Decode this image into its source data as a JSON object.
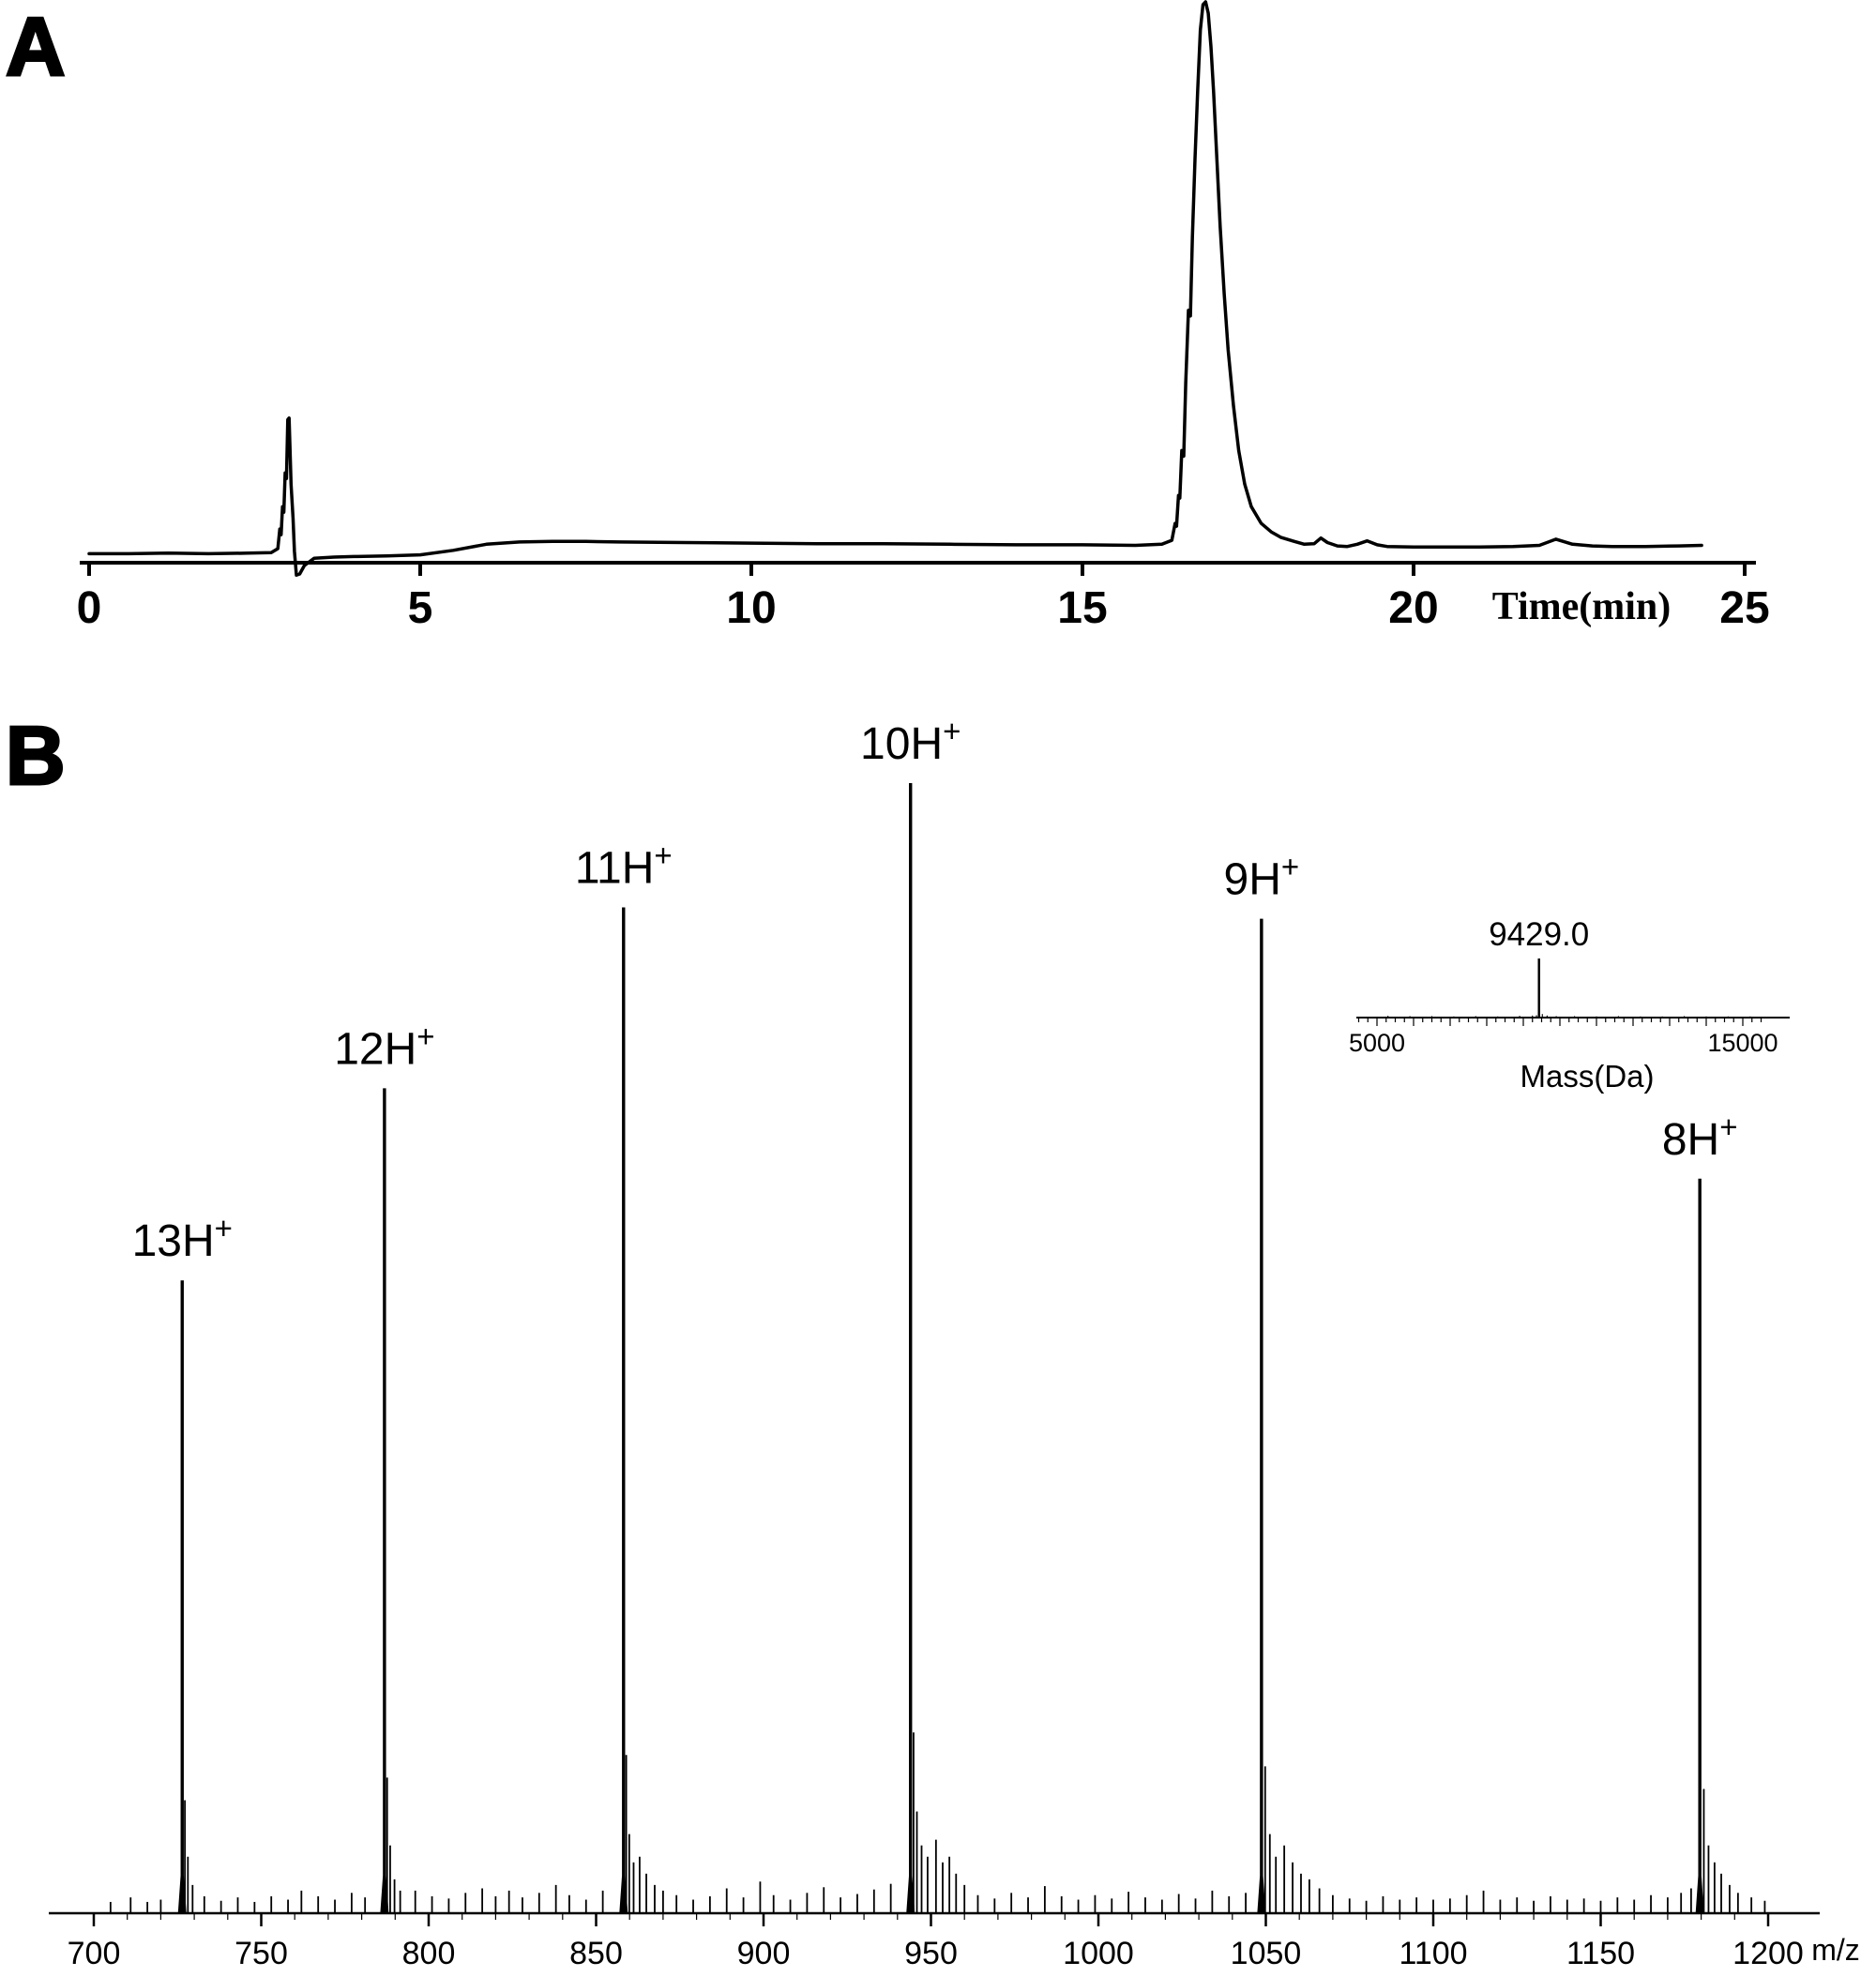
{
  "panels": {
    "a": {
      "letter": "A"
    },
    "b": {
      "letter": "B"
    }
  },
  "colors": {
    "background": "#ffffff",
    "trace": "#000000"
  },
  "chart_data": [
    {
      "id": "hplc-chromatogram",
      "type": "line",
      "panel": "A",
      "title": "",
      "xlabel": "Time(min)",
      "ylabel": "",
      "xlim": [
        0,
        25
      ],
      "x_ticks": [
        0,
        5,
        10,
        15,
        20,
        25
      ],
      "solvent_front_time_min": 3.0,
      "main_peak_time_min": 16.9,
      "points": [
        [
          0,
          1.6
        ],
        [
          0.6,
          1.6
        ],
        [
          1.2,
          1.7
        ],
        [
          1.8,
          1.6
        ],
        [
          2.4,
          1.7
        ],
        [
          2.75,
          1.8
        ],
        [
          2.85,
          2.5
        ],
        [
          2.88,
          6
        ],
        [
          2.9,
          5
        ],
        [
          2.92,
          10
        ],
        [
          2.94,
          9
        ],
        [
          2.96,
          16
        ],
        [
          2.98,
          15
        ],
        [
          3.0,
          25.5
        ],
        [
          3.02,
          25.8
        ],
        [
          3.05,
          14
        ],
        [
          3.08,
          8
        ],
        [
          3.1,
          2
        ],
        [
          3.13,
          -2.2
        ],
        [
          3.18,
          -2.0
        ],
        [
          3.25,
          -0.5
        ],
        [
          3.4,
          0.8
        ],
        [
          3.7,
          1.0
        ],
        [
          4.0,
          1.1
        ],
        [
          4.5,
          1.2
        ],
        [
          5.0,
          1.4
        ],
        [
          5.5,
          2.2
        ],
        [
          6.0,
          3.3
        ],
        [
          6.5,
          3.7
        ],
        [
          7.0,
          3.8
        ],
        [
          7.5,
          3.8
        ],
        [
          8.0,
          3.7
        ],
        [
          9.0,
          3.6
        ],
        [
          10.0,
          3.5
        ],
        [
          11.0,
          3.4
        ],
        [
          12.0,
          3.4
        ],
        [
          13.0,
          3.3
        ],
        [
          14.0,
          3.2
        ],
        [
          15.0,
          3.2
        ],
        [
          15.8,
          3.1
        ],
        [
          16.2,
          3.3
        ],
        [
          16.35,
          4.0
        ],
        [
          16.4,
          7.0
        ],
        [
          16.42,
          6.5
        ],
        [
          16.45,
          12
        ],
        [
          16.47,
          11.5
        ],
        [
          16.5,
          20
        ],
        [
          16.53,
          19
        ],
        [
          16.56,
          32
        ],
        [
          16.6,
          45
        ],
        [
          16.63,
          44
        ],
        [
          16.66,
          58
        ],
        [
          16.7,
          72
        ],
        [
          16.74,
          84
        ],
        [
          16.78,
          95
        ],
        [
          16.82,
          99.5
        ],
        [
          16.86,
          100
        ],
        [
          16.9,
          98
        ],
        [
          16.94,
          92
        ],
        [
          16.98,
          84
        ],
        [
          17.03,
          72
        ],
        [
          17.08,
          60
        ],
        [
          17.14,
          48
        ],
        [
          17.2,
          38
        ],
        [
          17.28,
          28
        ],
        [
          17.36,
          20
        ],
        [
          17.45,
          14
        ],
        [
          17.55,
          10
        ],
        [
          17.7,
          7
        ],
        [
          17.85,
          5.5
        ],
        [
          18.0,
          4.5
        ],
        [
          18.2,
          3.8
        ],
        [
          18.35,
          3.3
        ],
        [
          18.5,
          3.4
        ],
        [
          18.6,
          4.4
        ],
        [
          18.7,
          3.6
        ],
        [
          18.85,
          3.0
        ],
        [
          19.0,
          2.9
        ],
        [
          19.15,
          3.3
        ],
        [
          19.3,
          3.9
        ],
        [
          19.45,
          3.2
        ],
        [
          19.6,
          2.9
        ],
        [
          20.0,
          2.8
        ],
        [
          20.5,
          2.8
        ],
        [
          21.0,
          2.8
        ],
        [
          21.5,
          2.9
        ],
        [
          21.9,
          3.1
        ],
        [
          22.15,
          4.2
        ],
        [
          22.4,
          3.3
        ],
        [
          22.7,
          3.0
        ],
        [
          23.0,
          2.9
        ],
        [
          23.5,
          2.9
        ],
        [
          24.0,
          3.0
        ],
        [
          24.35,
          3.1
        ]
      ]
    },
    {
      "id": "esi-mass-spectrum",
      "type": "stick",
      "panel": "B",
      "title": "",
      "xlabel": "m/z",
      "ylabel": "",
      "xlim": [
        700,
        1200
      ],
      "x_ticks": [
        700,
        750,
        800,
        850,
        900,
        950,
        1000,
        1050,
        1100,
        1150,
        1200
      ],
      "charge_state_peaks": [
        {
          "mz": 726.4,
          "rel_intensity": 56,
          "label": "13H",
          "label_sup": "+"
        },
        {
          "mz": 786.8,
          "rel_intensity": 73,
          "label": "12H",
          "label_sup": "+"
        },
        {
          "mz": 858.2,
          "rel_intensity": 89,
          "label": "11H",
          "label_sup": "+"
        },
        {
          "mz": 943.9,
          "rel_intensity": 100,
          "label": "10H",
          "label_sup": "+"
        },
        {
          "mz": 1048.7,
          "rel_intensity": 88,
          "label": "9H",
          "label_sup": "+"
        },
        {
          "mz": 1179.6,
          "rel_intensity": 65,
          "label": "8H",
          "label_sup": "+"
        }
      ],
      "minor_peaks": [
        [
          705,
          1.0
        ],
        [
          711,
          1.4
        ],
        [
          716,
          1.0
        ],
        [
          720,
          1.2
        ],
        [
          727.2,
          10
        ],
        [
          728.1,
          5
        ],
        [
          729.5,
          2.5
        ],
        [
          733,
          1.5
        ],
        [
          738,
          1.1
        ],
        [
          743,
          1.4
        ],
        [
          748,
          1.0
        ],
        [
          753,
          1.5
        ],
        [
          758,
          1.2
        ],
        [
          762,
          2.0
        ],
        [
          767,
          1.5
        ],
        [
          772,
          1.2
        ],
        [
          777,
          1.8
        ],
        [
          781,
          1.4
        ],
        [
          787.6,
          12
        ],
        [
          788.5,
          6
        ],
        [
          789.8,
          3
        ],
        [
          791.5,
          2
        ],
        [
          796,
          2.0
        ],
        [
          801,
          1.5
        ],
        [
          806,
          1.3
        ],
        [
          811,
          1.8
        ],
        [
          816,
          2.2
        ],
        [
          820,
          1.5
        ],
        [
          824,
          2.0
        ],
        [
          828,
          1.4
        ],
        [
          833,
          1.8
        ],
        [
          838,
          2.5
        ],
        [
          842,
          1.6
        ],
        [
          847,
          1.2
        ],
        [
          852,
          2.0
        ],
        [
          859.0,
          14
        ],
        [
          859.9,
          7
        ],
        [
          861.2,
          4.5
        ],
        [
          863,
          5
        ],
        [
          865,
          3.5
        ],
        [
          867.5,
          2.5
        ],
        [
          870,
          2.0
        ],
        [
          874,
          1.6
        ],
        [
          879,
          1.2
        ],
        [
          884,
          1.5
        ],
        [
          889,
          2.2
        ],
        [
          894,
          1.4
        ],
        [
          899,
          2.8
        ],
        [
          903,
          1.6
        ],
        [
          908,
          1.2
        ],
        [
          913,
          1.8
        ],
        [
          918,
          2.3
        ],
        [
          923,
          1.4
        ],
        [
          928,
          1.7
        ],
        [
          933,
          2.1
        ],
        [
          938,
          2.6
        ],
        [
          944.8,
          16
        ],
        [
          945.8,
          9
        ],
        [
          947.2,
          6
        ],
        [
          949,
          5
        ],
        [
          951.5,
          6.5
        ],
        [
          953.5,
          4.5
        ],
        [
          955.5,
          5
        ],
        [
          957.5,
          3.5
        ],
        [
          960,
          2.5
        ],
        [
          964,
          1.6
        ],
        [
          969,
          1.3
        ],
        [
          974,
          1.8
        ],
        [
          979,
          1.4
        ],
        [
          984,
          2.4
        ],
        [
          989,
          1.5
        ],
        [
          994,
          1.2
        ],
        [
          999,
          1.6
        ],
        [
          1004,
          1.3
        ],
        [
          1009,
          1.9
        ],
        [
          1014,
          1.4
        ],
        [
          1019,
          1.2
        ],
        [
          1024,
          1.7
        ],
        [
          1029,
          1.3
        ],
        [
          1034,
          2.0
        ],
        [
          1039,
          1.5
        ],
        [
          1044,
          1.8
        ],
        [
          1049.8,
          13
        ],
        [
          1051.2,
          7
        ],
        [
          1053,
          5
        ],
        [
          1055.5,
          6
        ],
        [
          1058,
          4.5
        ],
        [
          1060.5,
          3.5
        ],
        [
          1063,
          3.0
        ],
        [
          1066,
          2.2
        ],
        [
          1070,
          1.6
        ],
        [
          1075,
          1.3
        ],
        [
          1080,
          1.1
        ],
        [
          1085,
          1.5
        ],
        [
          1090,
          1.2
        ],
        [
          1095,
          1.4
        ],
        [
          1100,
          1.2
        ],
        [
          1105,
          1.3
        ],
        [
          1110,
          1.6
        ],
        [
          1115,
          2.0
        ],
        [
          1120,
          1.2
        ],
        [
          1125,
          1.4
        ],
        [
          1130,
          1.1
        ],
        [
          1135,
          1.5
        ],
        [
          1140,
          1.2
        ],
        [
          1145,
          1.3
        ],
        [
          1150,
          1.1
        ],
        [
          1155,
          1.4
        ],
        [
          1160,
          1.2
        ],
        [
          1165,
          1.6
        ],
        [
          1170,
          1.4
        ],
        [
          1174,
          1.8
        ],
        [
          1177,
          2.2
        ],
        [
          1180.8,
          11
        ],
        [
          1182.2,
          6
        ],
        [
          1184,
          4.5
        ],
        [
          1186,
          3.5
        ],
        [
          1188.5,
          2.5
        ],
        [
          1191,
          1.8
        ],
        [
          1195,
          1.4
        ],
        [
          1199,
          1.1
        ]
      ]
    },
    {
      "id": "deconvoluted-mass-inset",
      "type": "stick",
      "panel": "B",
      "title": "",
      "xlabel": "Mass(Da)",
      "ylabel": "",
      "xlim": [
        4500,
        15800
      ],
      "x_ticks": [
        5000,
        15000
      ],
      "peaks": [
        {
          "mass": 9429.0,
          "rel_intensity": 100,
          "label": "9429.0"
        }
      ],
      "noise_peaks": [
        [
          5300,
          3
        ],
        [
          5900,
          2.5
        ],
        [
          6500,
          2.5
        ],
        [
          7100,
          2
        ],
        [
          7700,
          2.5
        ],
        [
          8300,
          2
        ],
        [
          8900,
          3
        ],
        [
          9250,
          3.5
        ],
        [
          9360,
          4
        ],
        [
          9520,
          6
        ],
        [
          9650,
          3.5
        ],
        [
          9900,
          2.5
        ],
        [
          10400,
          2.5
        ],
        [
          11000,
          2
        ],
        [
          11600,
          2.5
        ],
        [
          12200,
          2
        ],
        [
          12800,
          2
        ],
        [
          13400,
          2.5
        ],
        [
          14000,
          2
        ],
        [
          14600,
          2
        ],
        [
          15200,
          2
        ]
      ]
    }
  ]
}
